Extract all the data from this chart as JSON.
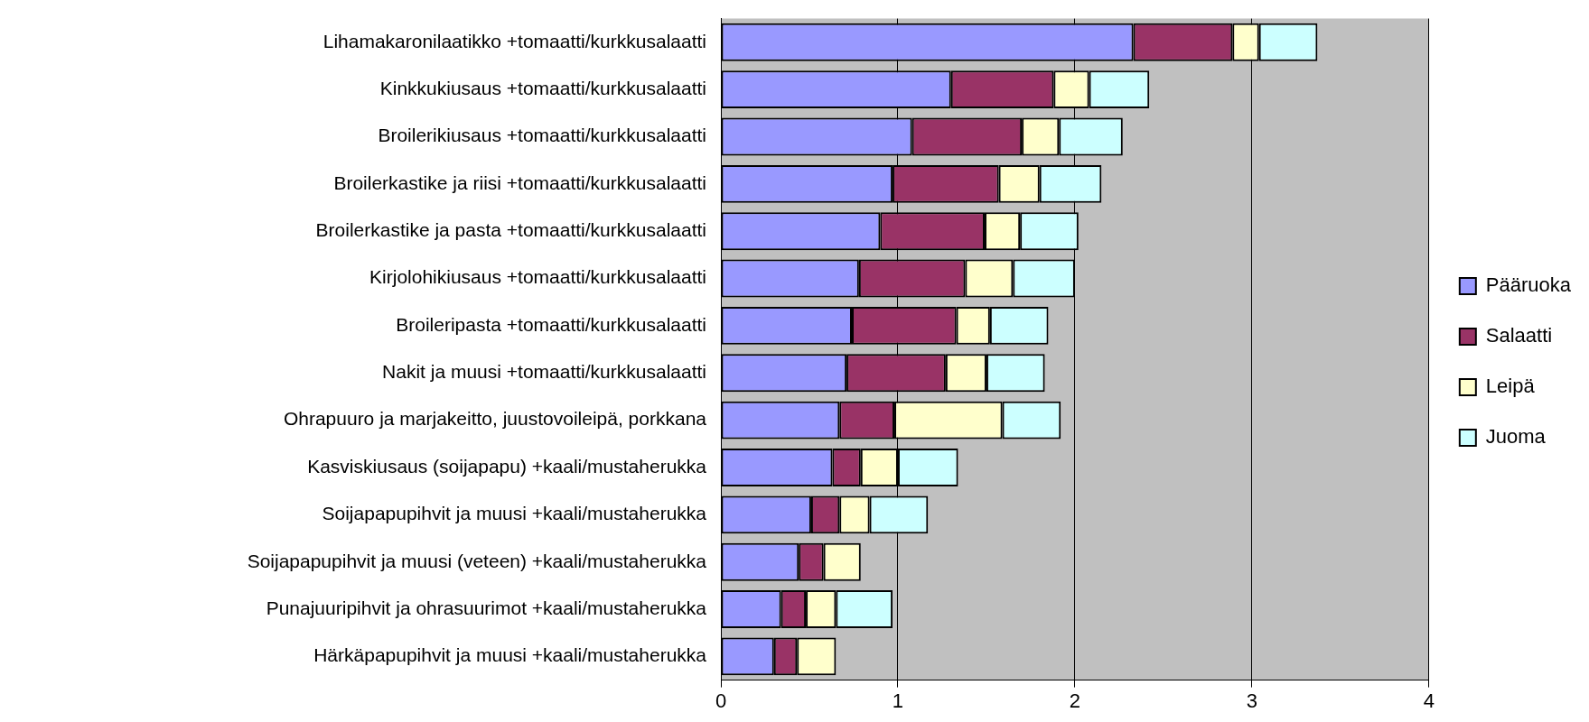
{
  "chart_data": {
    "type": "bar",
    "orientation": "horizontal",
    "stacked": true,
    "categories": [
      "Lihamakaronilaatikko +tomaatti/kurkkusalaatti",
      "Kinkkukiusaus +tomaatti/kurkkusalaatti",
      "Broilerikiusaus +tomaatti/kurkkusalaatti",
      "Broilerkastike ja riisi +tomaatti/kurkkusalaatti",
      "Broilerkastike ja pasta +tomaatti/kurkkusalaatti",
      "Kirjolohikiusaus +tomaatti/kurkkusalaatti",
      "Broileripasta +tomaatti/kurkkusalaatti",
      "Nakit ja muusi +tomaatti/kurkkusalaatti",
      "Ohrapuuro ja marjakeitto, juustovoileipä, porkkana",
      "Kasviskiusaus (soijapapu) +kaali/mustaherukka",
      "Soijapapupihvit ja muusi +kaali/mustaherukka",
      "Soijapapupihvit ja muusi (veteen) +kaali/mustaherukka",
      "Punajuuripihvit ja ohrasuurimot +kaali/mustaherukka",
      "Härkäpapupihvit ja muusi +kaali/mustaherukka"
    ],
    "series": [
      {
        "name": "Pääruoka",
        "color": "#9999ff",
        "values": [
          2.33,
          1.3,
          1.08,
          0.97,
          0.9,
          0.78,
          0.74,
          0.71,
          0.67,
          0.63,
          0.51,
          0.44,
          0.34,
          0.3
        ]
      },
      {
        "name": "Salaatti",
        "color": "#993366",
        "values": [
          0.56,
          0.58,
          0.62,
          0.6,
          0.59,
          0.6,
          0.59,
          0.56,
          0.31,
          0.16,
          0.16,
          0.14,
          0.14,
          0.13
        ]
      },
      {
        "name": "Leipä",
        "color": "#ffffcc",
        "values": [
          0.15,
          0.2,
          0.21,
          0.23,
          0.2,
          0.27,
          0.19,
          0.23,
          0.61,
          0.21,
          0.17,
          0.21,
          0.17,
          0.22
        ]
      },
      {
        "name": "Juoma",
        "color": "#ccffff",
        "values": [
          0.33,
          0.34,
          0.36,
          0.35,
          0.33,
          0.35,
          0.33,
          0.33,
          0.33,
          0.34,
          0.33,
          null,
          0.32,
          null
        ]
      }
    ],
    "xlim": [
      0,
      4
    ],
    "xticks": [
      0,
      1,
      2,
      3,
      4
    ],
    "grid": "x",
    "legend": "right"
  }
}
